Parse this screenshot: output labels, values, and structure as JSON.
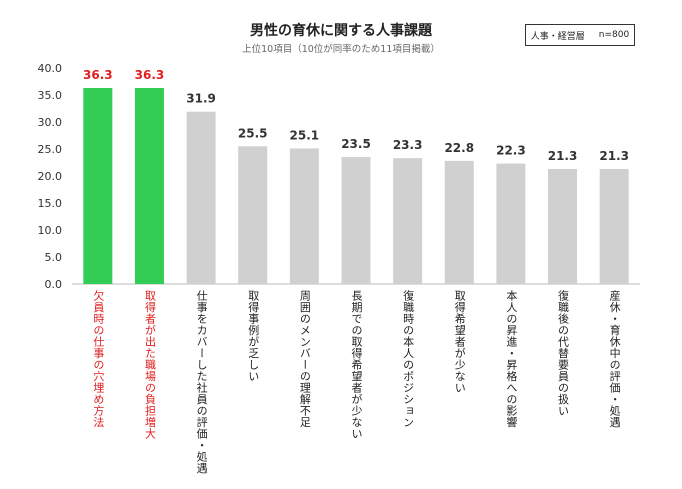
{
  "chart_data": {
    "type": "bar",
    "title": "男性の育休に関する人事課題",
    "subtitle": "上位10項目（10位が同率のため11項目掲載）",
    "categories": [
      "欠員時の仕事の穴埋め方法",
      "取得者が出た職場の負担増大",
      "仕事をカバーした社員の評価・処遇",
      "取得事例が乏しい",
      "周囲のメンバーの理解不足",
      "長期での取得希望者が少ない",
      "復職時の本人のポジション",
      "取得希望者が少ない",
      "本人の昇進・昇格への影響",
      "復職後の代替要員の扱い",
      "産休・育休中の評価・処遇"
    ],
    "values": [
      36.3,
      36.3,
      31.9,
      25.5,
      25.1,
      23.5,
      23.3,
      22.8,
      22.3,
      21.3,
      21.3
    ],
    "ylim": [
      0,
      40
    ],
    "yticks": [
      "0.0",
      "5.0",
      "10.0",
      "15.0",
      "20.0",
      "25.0",
      "30.0",
      "35.0",
      "40.0"
    ],
    "highlight_indices": [
      0,
      1
    ],
    "colors": {
      "highlight_bar": "#33cc55",
      "normal_bar": "#d0d0d0",
      "highlight_label": "#e01f1f",
      "normal_label": "#333333"
    },
    "grid": false,
    "legend": "none"
  },
  "badge": {
    "group": "人事・経営層",
    "n": "n=800"
  }
}
